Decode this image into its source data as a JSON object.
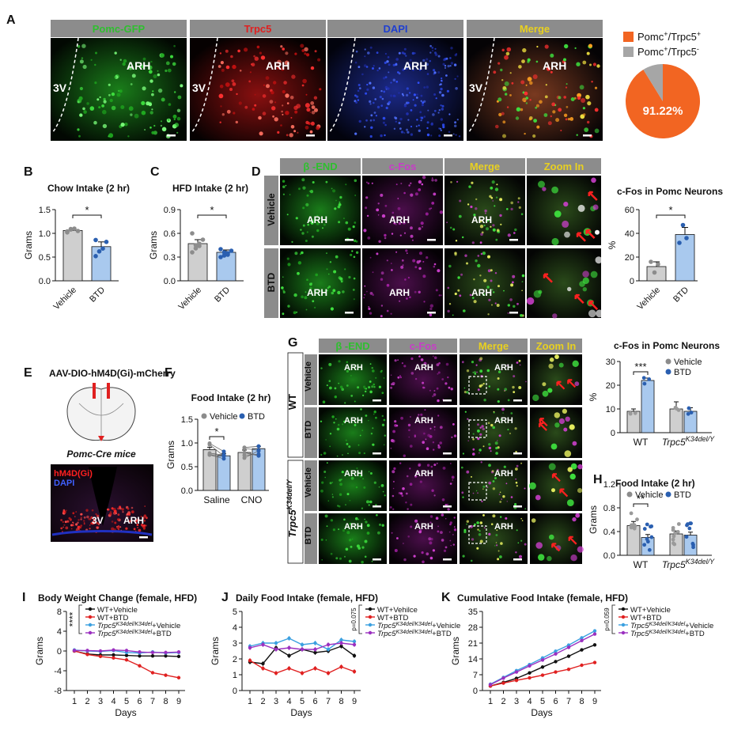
{
  "panel_letters": [
    "A",
    "B",
    "C",
    "D",
    "E",
    "F",
    "G",
    "H",
    "I",
    "J",
    "K"
  ],
  "panel_a": {
    "headers": [
      "Pomc-GFP",
      "Trpc5",
      "DAPI",
      "Merge"
    ],
    "header_colors": [
      "#2fbf2f",
      "#e02020",
      "#2040d0",
      "#e8d020"
    ],
    "labels_arh": [
      "ARH",
      "ARH",
      "ARH",
      "ARH"
    ],
    "labels_3v": [
      "3V",
      "3V",
      "3V"
    ]
  },
  "pie": {
    "legend": [
      {
        "label": "Pomc+/Trpc5+",
        "color": "#f26522"
      },
      {
        "label": "Pomc+/Trpc5-",
        "color": "#a6a6a6"
      }
    ],
    "center_label": "91.22%"
  },
  "panel_d": {
    "headers": [
      "β -END",
      "c-Fos",
      "Merge",
      "Zoom In"
    ],
    "header_colors": [
      "#2fbf2f",
      "#c83cc8",
      "#e8d020",
      "#e8d020"
    ],
    "rows": [
      "Vehicle",
      "BTD"
    ],
    "arh": "ARH"
  },
  "panel_e": {
    "title": "AAV-DIO-hM4D(Gi)-mCherry",
    "mice": "Pomc-Cre mice",
    "legend1": "hM4D(Gi)",
    "legend2": "DAPI",
    "label_3v": "3V",
    "label_arh": "ARH"
  },
  "panel_g": {
    "headers": [
      "β -END",
      "c-Fos",
      "Merge",
      "Zoom In"
    ],
    "groups": [
      "WT",
      "Trpc5K34del/Y"
    ],
    "rows": [
      "Vehicle",
      "BTD",
      "Vehicle",
      "BTD"
    ],
    "arh": "ARH"
  },
  "chart_data": [
    {
      "id": "B",
      "type": "bar",
      "title": "Chow Intake (2 hr)",
      "categories": [
        "Vehicle",
        "BTD"
      ],
      "values": [
        1.06,
        0.72
      ],
      "errors": [
        0.04,
        0.1
      ],
      "points": [
        [
          1.04,
          1.09,
          1.1,
          1.05,
          1.02,
          1.08
        ],
        [
          0.52,
          0.62,
          0.68,
          0.82,
          0.86
        ]
      ],
      "ylabel": "Grams",
      "ylim": [
        0,
        1.5
      ],
      "yticks": [
        "0.0",
        "0.5",
        "1.0",
        "1.5"
      ],
      "sig": "*"
    },
    {
      "id": "C",
      "type": "bar",
      "title": "HFD Intake (2 hr)",
      "categories": [
        "Vehicle",
        "BTD"
      ],
      "values": [
        0.47,
        0.36
      ],
      "errors": [
        0.05,
        0.03
      ],
      "points": [
        [
          0.36,
          0.41,
          0.47,
          0.52,
          0.6,
          0.45,
          0.44
        ],
        [
          0.3,
          0.32,
          0.35,
          0.38,
          0.4,
          0.36,
          0.33
        ]
      ],
      "ylabel": "Grams",
      "ylim": [
        0,
        0.9
      ],
      "yticks": [
        "0.0",
        "0.3",
        "0.6",
        "0.9"
      ],
      "sig": "*"
    },
    {
      "id": "D",
      "type": "bar",
      "title": "c-Fos in Pomc Neurons",
      "categories": [
        "Vehicle",
        "BTD"
      ],
      "values": [
        12,
        39
      ],
      "errors": [
        4,
        6
      ],
      "points": [
        [
          16,
          7,
          14
        ],
        [
          32,
          47,
          36
        ]
      ],
      "ylabel": "%",
      "ylim": [
        0,
        60
      ],
      "yticks": [
        "0",
        "20",
        "40",
        "60"
      ],
      "sig": "*"
    },
    {
      "id": "F",
      "type": "paired",
      "title": "Food Intake (2 hr)",
      "groups": [
        "Saline",
        "CNO"
      ],
      "series": [
        "Vehicle",
        "BTD"
      ],
      "values": [
        [
          0.86,
          0.73
        ],
        [
          0.8,
          0.88
        ]
      ],
      "errors": [
        [
          0.05,
          0.05
        ],
        [
          0.05,
          0.05
        ]
      ],
      "ylabel": "Grams",
      "ylim": [
        0,
        1.5
      ],
      "yticks": [
        "0.0",
        "0.5",
        "1.0",
        "1.5"
      ],
      "sig": "*"
    },
    {
      "id": "G",
      "type": "bar",
      "title": "c-Fos in Pomc Neurons",
      "groups": [
        "WT",
        "Trpc5K34del/Y"
      ],
      "series": [
        "Vehicle",
        "BTD"
      ],
      "values": [
        [
          9,
          22
        ],
        [
          10,
          9
        ]
      ],
      "errors": [
        [
          1,
          1
        ],
        [
          3,
          1.5
        ]
      ],
      "ylabel": "%",
      "ylim": [
        0,
        30
      ],
      "yticks": [
        "0",
        "10",
        "20",
        "30"
      ],
      "sig": "***"
    },
    {
      "id": "H",
      "type": "bar",
      "title": "Food Intake (2 hr)",
      "groups": [
        "WT",
        "Trpc5K34del/Y"
      ],
      "series": [
        "Vehicle",
        "BTD"
      ],
      "values": [
        [
          0.5,
          0.3
        ],
        [
          0.36,
          0.34
        ]
      ],
      "errors": [
        [
          0.07,
          0.05
        ],
        [
          0.05,
          0.05
        ]
      ],
      "ylabel": "Grams",
      "ylim": [
        0,
        1.2
      ],
      "yticks": [
        "0.0",
        "0.4",
        "0.8",
        "1.2"
      ],
      "sig": "**"
    },
    {
      "id": "I",
      "type": "line",
      "title": "Body Weight Change (female, HFD)",
      "x": [
        1,
        2,
        3,
        4,
        5,
        6,
        7,
        8,
        9
      ],
      "xlabel": "Days",
      "ylabel": "Grams",
      "ylim": [
        -8,
        8
      ],
      "yticks": [
        "-8",
        "-4",
        "0",
        "4",
        "8"
      ],
      "series": [
        {
          "name": "WT+Vehicle",
          "color": "#111111",
          "values": [
            0,
            -0.6,
            -0.8,
            -0.8,
            -0.9,
            -1,
            -1,
            -1,
            -1.1
          ]
        },
        {
          "name": "WT+BTD",
          "color": "#e02020",
          "values": [
            0,
            -0.7,
            -1.1,
            -1.4,
            -1.8,
            -3,
            -4.4,
            -4.9,
            -5.4
          ]
        },
        {
          "name": "Trpc5K34del/K34del+Vehicle",
          "color": "#3ba0e0",
          "values": [
            0.2,
            0,
            -0.1,
            0.1,
            -0.3,
            -0.4,
            -0.2,
            -0.4,
            -0.3
          ]
        },
        {
          "name": "Trpc5K34del/K34del+BTD",
          "color": "#9b30c0",
          "values": [
            0.1,
            0.1,
            0,
            0.2,
            0.1,
            -0.2,
            -0.3,
            -0.3,
            -0.2
          ]
        }
      ],
      "sig": "****"
    },
    {
      "id": "J",
      "type": "line",
      "title": "Daily Food Intake (female, HFD)",
      "x": [
        1,
        2,
        3,
        4,
        5,
        6,
        7,
        8,
        9
      ],
      "xlabel": "Days",
      "ylabel": "Grams",
      "ylim": [
        0,
        5
      ],
      "yticks": [
        "0",
        "1",
        "2",
        "3",
        "4",
        "5"
      ],
      "series": [
        {
          "name": "WT+Vehilce",
          "color": "#111111",
          "values": [
            1.8,
            1.7,
            2.7,
            2.2,
            2.6,
            2.4,
            2.5,
            2.8,
            2.2
          ]
        },
        {
          "name": "WT+BTD",
          "color": "#e02020",
          "values": [
            1.9,
            1.4,
            1.1,
            1.4,
            1.1,
            1.4,
            1.1,
            1.5,
            1.2
          ]
        },
        {
          "name": "Trpc5K34del/K34del+Vehicle",
          "color": "#3ba0e0",
          "values": [
            2.8,
            3,
            3,
            3.3,
            2.9,
            3,
            2.6,
            3.2,
            3.1
          ]
        },
        {
          "name": "Trpc5K34del/K34del+BTD",
          "color": "#9b30c0",
          "values": [
            2.7,
            2.9,
            2.6,
            2.7,
            2.6,
            2.6,
            2.9,
            3,
            2.9
          ]
        }
      ],
      "sig": "p=0.075"
    },
    {
      "id": "K",
      "type": "line",
      "title": "Cumulative Food Intake (female, HFD)",
      "x": [
        1,
        2,
        3,
        4,
        5,
        6,
        7,
        8,
        9
      ],
      "xlabel": "Days",
      "ylabel": "Grams",
      "ylim": [
        0,
        35
      ],
      "yticks": [
        "0",
        "7",
        "14",
        "21",
        "28",
        "35"
      ],
      "series": [
        {
          "name": "WT+Vehicle",
          "color": "#111111",
          "values": [
            2,
            3.6,
            5.4,
            7.8,
            10.4,
            12.8,
            15.2,
            18,
            20.2
          ]
        },
        {
          "name": "WT+BTD",
          "color": "#e02020",
          "values": [
            2,
            3.3,
            4.5,
            5.6,
            6.8,
            8.2,
            9.4,
            11.2,
            12.4
          ]
        },
        {
          "name": "Trpc5K34del/K34del+Vehicle",
          "color": "#3ba0e0",
          "values": [
            2.8,
            5.8,
            8.8,
            11.5,
            14.4,
            17.4,
            20.1,
            23.3,
            26.4
          ]
        },
        {
          "name": "Trpc5K34del/K34del+BTD",
          "color": "#9b30c0",
          "values": [
            2.6,
            5.5,
            8.2,
            10.9,
            13.5,
            16.2,
            19.1,
            22.1,
            25
          ]
        }
      ],
      "sig": "p=0.059"
    }
  ]
}
